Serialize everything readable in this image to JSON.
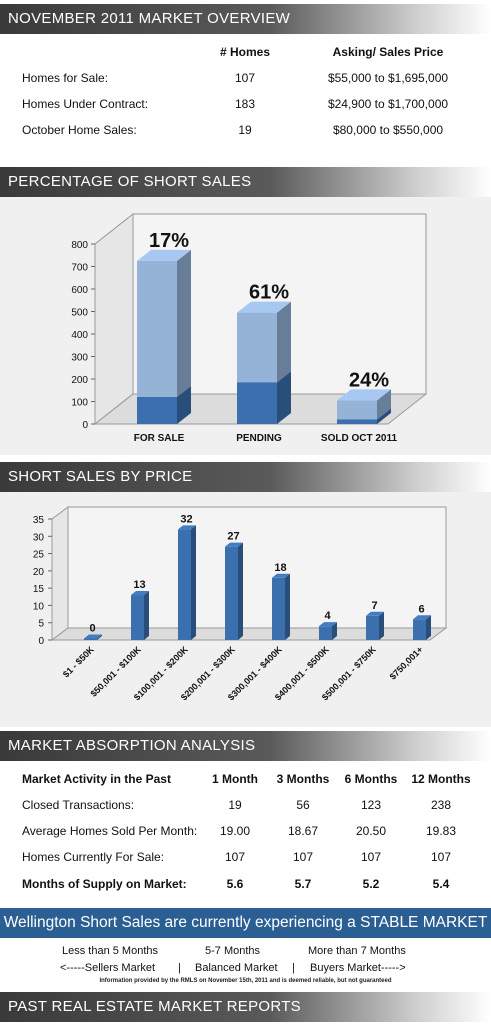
{
  "overview": {
    "header": "NOVEMBER 2011 MARKET OVERVIEW",
    "col_homes": "# Homes",
    "col_price": "Asking/ Sales Price",
    "rows": [
      {
        "label": "Homes for Sale:",
        "homes": "107",
        "price": "$55,000 to $1,695,000"
      },
      {
        "label": "Homes Under Contract:",
        "homes": "183",
        "price": "$24,900 to $1,700,000"
      },
      {
        "label": "October Home Sales:",
        "homes": "19",
        "price": "$80,000 to $550,000"
      }
    ]
  },
  "short_sales_header": "PERCENTAGE OF SHORT SALES",
  "price_header": "SHORT SALES BY PRICE",
  "absorption": {
    "header": "MARKET ABSORPTION ANALYSIS",
    "col_label": "Market Activity in the Past",
    "cols": [
      "1 Month",
      "3 Months",
      "6 Months",
      "12 Months"
    ],
    "rows": [
      {
        "label": "Closed Transactions:",
        "values": [
          "19",
          "56",
          "123",
          "238"
        ]
      },
      {
        "label": "Average Homes Sold Per Month:",
        "values": [
          "19.00",
          "18.67",
          "20.50",
          "19.83"
        ]
      },
      {
        "label": "Homes Currently For Sale:",
        "values": [
          "107",
          "107",
          "107",
          "107"
        ]
      },
      {
        "label": "Months of Supply on Market:",
        "values": [
          "5.6",
          "5.7",
          "5.2",
          "5.4"
        ]
      }
    ]
  },
  "banner": "Wellington Short Sales are currently experiencing a STABLE MARKET",
  "legend": {
    "row1": [
      "Less than 5 Months",
      "5-7 Months",
      "More than 7 Months"
    ],
    "row2": [
      "<-----Sellers Market",
      "|",
      "Balanced Market",
      "|",
      "Buyers Market----->"
    ]
  },
  "disclaimer": "Information provided by the RMLS on November 15th, 2011 and is deemed reliable, but not guaranteed",
  "past_header": "PAST REAL ESTATE MARKET REPORTS",
  "colors": {
    "header_dark": "#3a3a3a",
    "bar_light": "#95b3d7",
    "bar_dark": "#3b6fae",
    "banner": "#2b5f93"
  },
  "chart_data": [
    {
      "type": "bar",
      "stacked": true,
      "categories": [
        "FOR SALE",
        "PENDING",
        "SOLD OCT 2011"
      ],
      "series": [
        {
          "values": [
            120,
            185,
            20
          ]
        },
        {
          "values": [
            605,
            310,
            85
          ]
        }
      ],
      "totals": [
        725,
        495,
        105
      ],
      "annotations": [
        "17%",
        "61%",
        "24%"
      ],
      "ylim": [
        0,
        800
      ],
      "yticks": [
        0,
        100,
        200,
        300,
        400,
        500,
        600,
        700,
        800
      ],
      "grid": false
    },
    {
      "type": "bar",
      "categories": [
        "$1 - $50K",
        "$50,001 - $100K",
        "$100,001 - $200K",
        "$200,001 - $300K",
        "$300,001 - $400K",
        "$400,001 - $500K",
        "$500,001 - $750K",
        "$750,001+"
      ],
      "values": [
        0,
        13,
        32,
        27,
        18,
        4,
        7,
        6
      ],
      "ylim": [
        0,
        35
      ],
      "yticks": [
        0,
        5,
        10,
        15,
        20,
        25,
        30,
        35
      ],
      "grid": false
    }
  ]
}
